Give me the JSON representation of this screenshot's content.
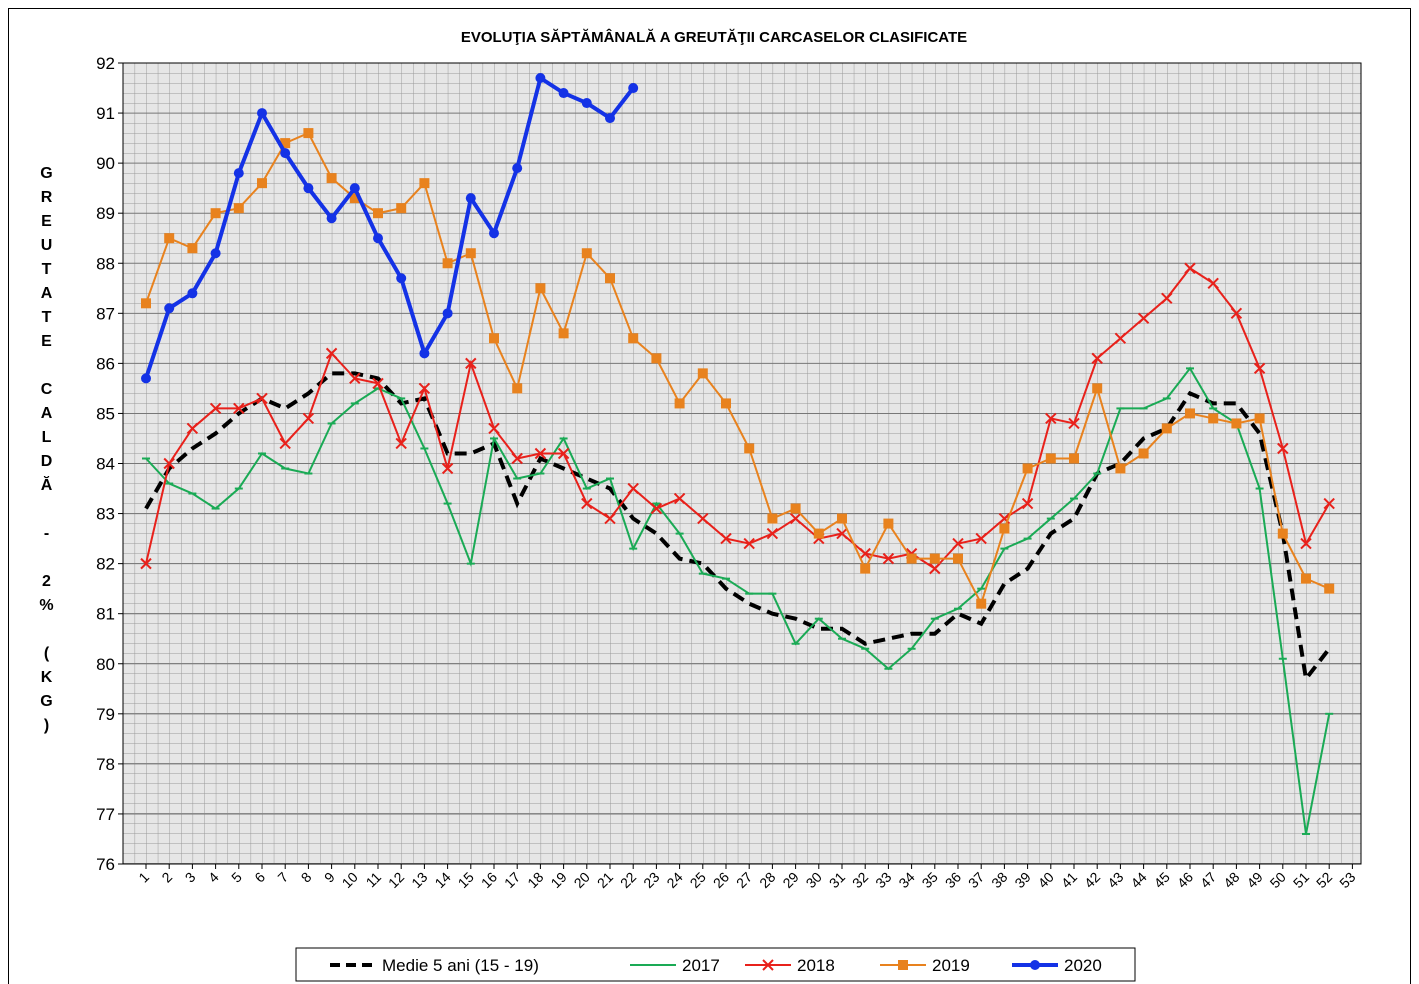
{
  "chart_data": {
    "type": "line",
    "title": "EVOLUŢIA SĂPTĂMÂNALĂ A GREUTĂŢII CARCASELOR CLASIFICATE",
    "y_label": "GREUTATE CALDĂ - 2% (KG)",
    "categories": [
      "1",
      "2",
      "3",
      "4",
      "5",
      "6",
      "7",
      "8",
      "9",
      "10",
      "11",
      "12",
      "13",
      "14",
      "15",
      "16",
      "17",
      "18",
      "19",
      "20",
      "21",
      "22",
      "23",
      "24",
      "25",
      "26",
      "27",
      "28",
      "29",
      "30",
      "31",
      "32",
      "33",
      "34",
      "35",
      "36",
      "37",
      "38",
      "39",
      "40",
      "41",
      "42",
      "43",
      "44",
      "45",
      "46",
      "47",
      "48",
      "49",
      "50",
      "51",
      "52",
      "53"
    ],
    "ylim": [
      76,
      92
    ],
    "yticks": [
      76,
      77,
      78,
      79,
      80,
      81,
      82,
      83,
      84,
      85,
      86,
      87,
      88,
      89,
      90,
      91,
      92
    ],
    "grid": true,
    "legend": "bottom",
    "series": [
      {
        "name": "Medie 5 ani (15 - 19)",
        "color": "#000000",
        "line_style": "dashed",
        "marker": "none",
        "values": [
          83.1,
          83.9,
          84.3,
          84.6,
          85.0,
          85.3,
          85.1,
          85.4,
          85.8,
          85.8,
          85.7,
          85.2,
          85.3,
          84.2,
          84.2,
          84.4,
          83.2,
          84.1,
          83.9,
          83.7,
          83.5,
          82.9,
          82.6,
          82.1,
          82.0,
          81.5,
          81.2,
          81.0,
          80.9,
          80.7,
          80.7,
          80.4,
          80.5,
          80.6,
          80.6,
          81.0,
          80.8,
          81.6,
          81.9,
          82.6,
          82.9,
          83.8,
          84.0,
          84.5,
          84.7,
          85.4,
          85.2,
          85.2,
          84.6,
          82.6,
          79.7,
          80.3,
          null
        ]
      },
      {
        "name": "2017",
        "color": "#1aaa55",
        "line_style": "solid",
        "marker": "dash",
        "values": [
          84.1,
          83.6,
          83.4,
          83.1,
          83.5,
          84.2,
          83.9,
          83.8,
          84.8,
          85.2,
          85.5,
          85.3,
          84.3,
          83.2,
          82.0,
          84.5,
          83.7,
          83.8,
          84.5,
          83.5,
          83.7,
          82.3,
          83.2,
          82.6,
          81.8,
          81.7,
          81.4,
          81.4,
          80.4,
          80.9,
          80.5,
          80.3,
          79.9,
          80.3,
          80.9,
          81.1,
          81.5,
          82.3,
          82.5,
          82.9,
          83.3,
          83.8,
          85.1,
          85.1,
          85.3,
          85.9,
          85.1,
          84.8,
          83.5,
          80.1,
          76.6,
          79.0,
          null
        ]
      },
      {
        "name": "2018",
        "color": "#e8211b",
        "line_style": "solid",
        "marker": "x",
        "values": [
          82.0,
          84.0,
          84.7,
          85.1,
          85.1,
          85.3,
          84.4,
          84.9,
          86.2,
          85.7,
          85.6,
          84.4,
          85.5,
          83.9,
          86.0,
          84.7,
          84.1,
          84.2,
          84.2,
          83.2,
          82.9,
          83.5,
          83.1,
          83.3,
          82.9,
          82.5,
          82.4,
          82.6,
          82.9,
          82.5,
          82.6,
          82.2,
          82.1,
          82.2,
          81.9,
          82.4,
          82.5,
          82.9,
          83.2,
          84.9,
          84.8,
          86.1,
          86.5,
          86.9,
          87.3,
          87.9,
          87.6,
          87.0,
          85.9,
          84.3,
          82.4,
          83.2,
          null
        ]
      },
      {
        "name": "2019",
        "color": "#e8821e",
        "line_style": "solid",
        "marker": "square",
        "values": [
          87.2,
          88.5,
          88.3,
          89.0,
          89.1,
          89.6,
          90.4,
          90.6,
          89.7,
          89.3,
          89.0,
          89.1,
          89.6,
          88.0,
          88.2,
          86.5,
          85.5,
          87.5,
          86.6,
          88.2,
          87.7,
          86.5,
          86.1,
          85.2,
          85.8,
          85.2,
          84.3,
          82.9,
          83.1,
          82.6,
          82.9,
          81.9,
          82.8,
          82.1,
          82.1,
          82.1,
          81.2,
          82.7,
          83.9,
          84.1,
          84.1,
          85.5,
          83.9,
          84.2,
          84.7,
          85.0,
          84.9,
          84.8,
          84.9,
          82.6,
          81.7,
          81.5,
          null
        ]
      },
      {
        "name": "2020",
        "color": "#1432e6",
        "line_style": "solid",
        "marker": "circle",
        "values": [
          85.7,
          87.1,
          87.4,
          88.2,
          89.8,
          91.0,
          90.2,
          89.5,
          88.9,
          89.5,
          88.5,
          87.7,
          86.2,
          87.0,
          89.3,
          88.6,
          89.9,
          91.7,
          91.4,
          91.2,
          90.9,
          91.5,
          null,
          null,
          null,
          null,
          null,
          null,
          null,
          null,
          null,
          null,
          null,
          null,
          null,
          null,
          null,
          null,
          null,
          null,
          null,
          null,
          null,
          null,
          null,
          null,
          null,
          null,
          null,
          null,
          null,
          null,
          null
        ]
      }
    ]
  }
}
